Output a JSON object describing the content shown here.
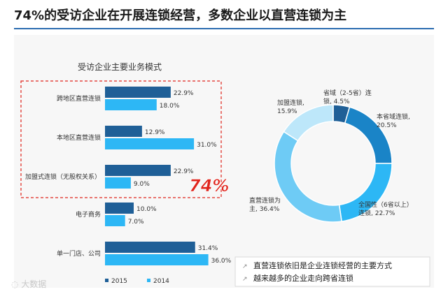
{
  "page_title": "74%的受访企业在开展连锁经营，多数企业以直营连锁为主",
  "watermark": "大数据",
  "chart_data": [
    {
      "type": "bar",
      "orientation": "horizontal",
      "title": "受访企业主要业务模式",
      "categories": [
        "跨地区直营连锁",
        "本地区直营连锁",
        "加盟式连锁（无股权关系）",
        "电子商务",
        "单一门店、公司"
      ],
      "series": [
        {
          "name": "2015",
          "color": "#1f5f97",
          "values": [
            22.9,
            12.9,
            22.9,
            10.0,
            31.4
          ],
          "labels": [
            "22.9%",
            "12.9%",
            "22.9%",
            "10.0%",
            "31.4%"
          ]
        },
        {
          "name": "2014",
          "color": "#2db7f5",
          "values": [
            18.0,
            31.0,
            9.0,
            7.0,
            36.0
          ],
          "labels": [
            "18.0%",
            "31.0%",
            "9.0%",
            "7.0%",
            "36.0%"
          ]
        }
      ],
      "xlim": [
        0,
        36
      ],
      "highlight": {
        "text": "74%",
        "color": "#e0241c",
        "border_color": "#e0241c",
        "covers": "first three categories"
      }
    },
    {
      "type": "pie",
      "style": "donut",
      "slices": [
        {
          "label": "省域（2-5省）连锁",
          "value": 4.5,
          "label_text": "省域（2-5省）连\n锁, 4.5%",
          "color": "#1f5f97"
        },
        {
          "label": "本省域连锁",
          "value": 20.5,
          "label_text": "本省域连锁,\n20.5%",
          "color": "#1a84c7"
        },
        {
          "label": "全国性（6省以上）连锁",
          "value": 22.7,
          "label_text": "全国性（6省以上）\n连锁, 22.7%",
          "color": "#2db7f5"
        },
        {
          "label": "直营连锁为主",
          "value": 36.4,
          "label_text": "直营连锁为\n主, 36.4%",
          "color": "#6ecbf5"
        },
        {
          "label": "加盟连锁",
          "value": 15.9,
          "label_text": "加盟连锁,\n15.9%",
          "color": "#bde7fa"
        }
      ]
    }
  ],
  "notes": [
    "直营连锁依旧是企业连锁经营的主要方式",
    "越来越多的企业走向跨省连锁"
  ]
}
